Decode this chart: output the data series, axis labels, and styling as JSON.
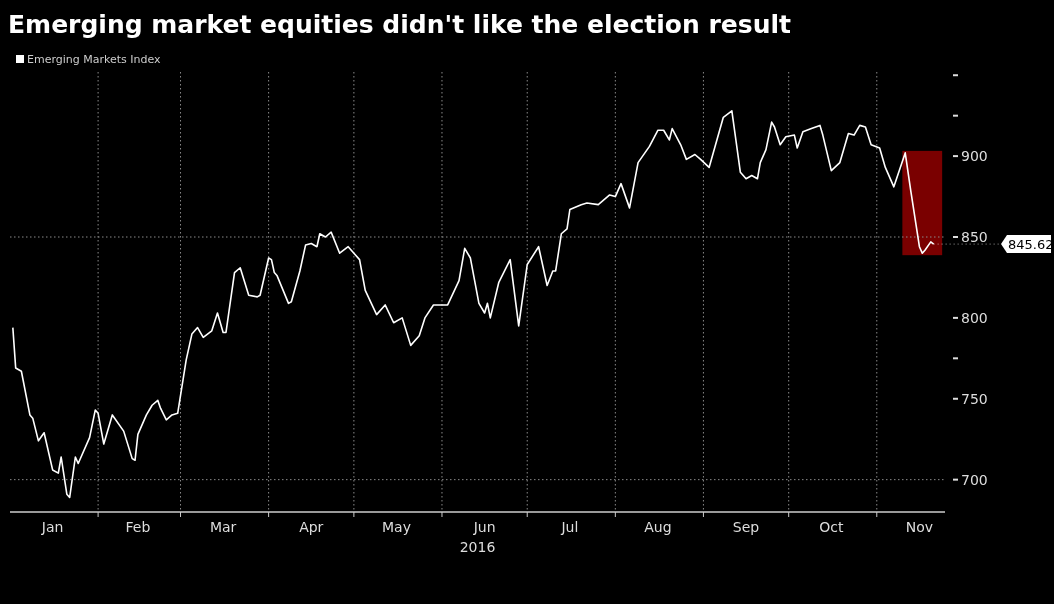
{
  "chart_data": {
    "type": "line",
    "title": "Emerging market equities didn't like the election result",
    "xlabel": "2016",
    "x": [
      "2016-01-02",
      "2016-01-03",
      "2016-01-05",
      "2016-01-08",
      "2016-01-09",
      "2016-01-11",
      "2016-01-13",
      "2016-01-16",
      "2016-01-18",
      "2016-01-19",
      "2016-01-21",
      "2016-01-22",
      "2016-01-24",
      "2016-01-25",
      "2016-01-29",
      "2016-01-31",
      "2016-02-01",
      "2016-02-03",
      "2016-02-06",
      "2016-02-10",
      "2016-02-13",
      "2016-02-14",
      "2016-02-15",
      "2016-02-18",
      "2016-02-20",
      "2016-02-22",
      "2016-02-23",
      "2016-02-25",
      "2016-02-27",
      "2016-02-29",
      "2016-03-03",
      "2016-03-05",
      "2016-03-07",
      "2016-03-09",
      "2016-03-12",
      "2016-03-14",
      "2016-03-16",
      "2016-03-17",
      "2016-03-20",
      "2016-03-22",
      "2016-03-25",
      "2016-03-28",
      "2016-03-29",
      "2016-04-01",
      "2016-04-02",
      "2016-04-03",
      "2016-04-04",
      "2016-04-08",
      "2016-04-09",
      "2016-04-12",
      "2016-04-14",
      "2016-04-16",
      "2016-04-18",
      "2016-04-19",
      "2016-04-21",
      "2016-04-23",
      "2016-04-26",
      "2016-04-29",
      "2016-05-03",
      "2016-05-05",
      "2016-05-09",
      "2016-05-12",
      "2016-05-15",
      "2016-05-18",
      "2016-05-21",
      "2016-05-24",
      "2016-05-26",
      "2016-05-29",
      "2016-06-03",
      "2016-06-07",
      "2016-06-09",
      "2016-06-11",
      "2016-06-14",
      "2016-06-16",
      "2016-06-17",
      "2016-06-18",
      "2016-06-21",
      "2016-06-25",
      "2016-06-28",
      "2016-07-01",
      "2016-07-05",
      "2016-07-08",
      "2016-07-10",
      "2016-07-11",
      "2016-07-13",
      "2016-07-15",
      "2016-07-16",
      "2016-07-20",
      "2016-07-22",
      "2016-07-26",
      "2016-07-30",
      "2016-08-01",
      "2016-08-03",
      "2016-08-06",
      "2016-08-09",
      "2016-08-13",
      "2016-08-16",
      "2016-08-18",
      "2016-08-20",
      "2016-08-21",
      "2016-08-24",
      "2016-08-26",
      "2016-08-29",
      "2016-08-31",
      "2016-09-03",
      "2016-09-08",
      "2016-09-11",
      "2016-09-14",
      "2016-09-16",
      "2016-09-18",
      "2016-09-20",
      "2016-09-21",
      "2016-09-23",
      "2016-09-25",
      "2016-09-26",
      "2016-09-28",
      "2016-09-30",
      "2016-10-03",
      "2016-10-04",
      "2016-10-06",
      "2016-10-09",
      "2016-10-12",
      "2016-10-13",
      "2016-10-16",
      "2016-10-19",
      "2016-10-22",
      "2016-10-24",
      "2016-10-26",
      "2016-10-28",
      "2016-10-30",
      "2016-11-02",
      "2016-11-04",
      "2016-11-07",
      "2016-11-11",
      "2016-11-13",
      "2016-11-16",
      "2016-11-17",
      "2016-11-18",
      "2016-11-20",
      "2016-11-21"
    ],
    "series": [
      {
        "name": "Emerging Markets Index",
        "color": "#ffffff",
        "values": [
          794,
          769,
          767,
          740,
          738,
          724,
          729,
          706,
          704,
          714,
          691,
          689,
          714,
          710,
          726,
          743,
          741,
          722,
          740,
          730,
          713,
          712,
          728,
          740,
          746,
          749,
          744,
          737,
          740,
          741,
          774,
          790,
          794,
          788,
          792,
          803,
          791,
          791,
          828,
          831,
          814,
          813,
          814,
          837,
          836,
          828,
          826,
          809,
          810,
          829,
          845,
          846,
          844,
          852,
          850,
          853,
          840,
          844,
          836,
          817,
          802,
          808,
          797,
          800,
          783,
          789,
          800,
          808,
          808,
          823,
          843,
          837,
          809,
          803,
          809,
          800,
          822,
          836,
          795,
          833,
          844,
          820,
          829,
          829,
          852,
          855,
          867,
          870,
          871,
          870,
          876,
          875,
          883,
          868,
          896,
          906,
          916,
          916,
          910,
          917,
          907,
          898,
          901,
          898,
          893,
          924,
          928,
          890,
          886,
          888,
          886,
          896,
          904,
          921,
          918,
          907,
          912,
          913,
          905,
          915,
          917,
          919,
          913,
          891,
          896,
          914,
          913,
          919,
          918,
          907,
          905,
          893,
          881,
          902,
          878,
          844,
          840,
          842,
          847,
          845.62
        ]
      }
    ],
    "xlim": [
      "2016-01-01",
      "2016-11-25"
    ],
    "xticks": [
      {
        "value": "2016-01-16",
        "label": "Jan"
      },
      {
        "value": "2016-02-01",
        "label": null
      },
      {
        "value": "2016-02-15",
        "label": "Feb"
      },
      {
        "value": "2016-03-01",
        "label": null
      },
      {
        "value": "2016-03-16",
        "label": "Mar"
      },
      {
        "value": "2016-04-01",
        "label": null
      },
      {
        "value": "2016-04-16",
        "label": "Apr"
      },
      {
        "value": "2016-05-01",
        "label": null
      },
      {
        "value": "2016-05-16",
        "label": "May"
      },
      {
        "value": "2016-06-01",
        "label": null
      },
      {
        "value": "2016-06-16",
        "label": "Jun"
      },
      {
        "value": "2016-07-01",
        "label": null
      },
      {
        "value": "2016-07-16",
        "label": "Jul"
      },
      {
        "value": "2016-08-01",
        "label": null
      },
      {
        "value": "2016-08-16",
        "label": "Aug"
      },
      {
        "value": "2016-09-01",
        "label": null
      },
      {
        "value": "2016-09-16",
        "label": "Sep"
      },
      {
        "value": "2016-10-01",
        "label": null
      },
      {
        "value": "2016-10-16",
        "label": "Oct"
      },
      {
        "value": "2016-11-01",
        "label": null
      },
      {
        "value": "2016-11-16",
        "label": "Nov"
      }
    ],
    "ylim": [
      680,
      952
    ],
    "yticks": [
      700,
      750,
      {
        "value": 775,
        "label": null
      },
      800,
      850,
      900,
      {
        "value": 925,
        "label": null
      },
      {
        "value": 950,
        "label": null
      }
    ],
    "grid": "x",
    "ref_lines": [
      {
        "axis": "y",
        "value": 700,
        "color": "#8a8a8a",
        "line_style": "dotted"
      },
      {
        "axis": "y",
        "value": 850,
        "color": "#8a8a8a",
        "line_style": "dotted"
      }
    ],
    "bands": [
      {
        "axis": "x",
        "from": "2016-11-10",
        "to": "2016-11-24",
        "color": "#7a0000"
      }
    ],
    "annotations": [
      {
        "text": "845.62",
        "x": "2016-11-21",
        "y": 845.62
      }
    ],
    "legend": "top left",
    "line_style": "solid",
    "marker": "none"
  }
}
